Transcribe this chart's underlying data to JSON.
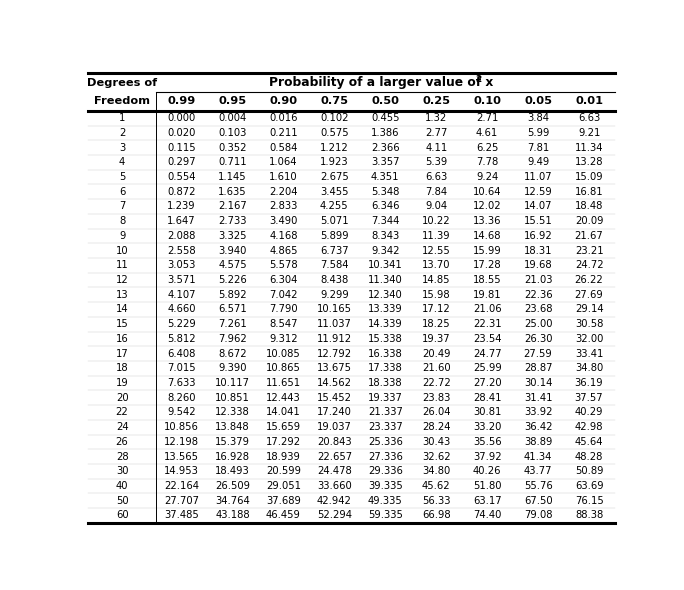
{
  "col_headers": [
    "0.99",
    "0.95",
    "0.90",
    "0.75",
    "0.50",
    "0.25",
    "0.10",
    "0.05",
    "0.01"
  ],
  "row_labels": [
    "1",
    "2",
    "3",
    "4",
    "5",
    "6",
    "7",
    "8",
    "9",
    "10",
    "11",
    "12",
    "13",
    "14",
    "15",
    "16",
    "17",
    "18",
    "19",
    "20",
    "22",
    "24",
    "26",
    "28",
    "30",
    "40",
    "50",
    "60"
  ],
  "table_data": [
    [
      "0.000",
      "0.004",
      "0.016",
      "0.102",
      "0.455",
      "1.32",
      "2.71",
      "3.84",
      "6.63"
    ],
    [
      "0.020",
      "0.103",
      "0.211",
      "0.575",
      "1.386",
      "2.77",
      "4.61",
      "5.99",
      "9.21"
    ],
    [
      "0.115",
      "0.352",
      "0.584",
      "1.212",
      "2.366",
      "4.11",
      "6.25",
      "7.81",
      "11.34"
    ],
    [
      "0.297",
      "0.711",
      "1.064",
      "1.923",
      "3.357",
      "5.39",
      "7.78",
      "9.49",
      "13.28"
    ],
    [
      "0.554",
      "1.145",
      "1.610",
      "2.675",
      "4.351",
      "6.63",
      "9.24",
      "11.07",
      "15.09"
    ],
    [
      "0.872",
      "1.635",
      "2.204",
      "3.455",
      "5.348",
      "7.84",
      "10.64",
      "12.59",
      "16.81"
    ],
    [
      "1.239",
      "2.167",
      "2.833",
      "4.255",
      "6.346",
      "9.04",
      "12.02",
      "14.07",
      "18.48"
    ],
    [
      "1.647",
      "2.733",
      "3.490",
      "5.071",
      "7.344",
      "10.22",
      "13.36",
      "15.51",
      "20.09"
    ],
    [
      "2.088",
      "3.325",
      "4.168",
      "5.899",
      "8.343",
      "11.39",
      "14.68",
      "16.92",
      "21.67"
    ],
    [
      "2.558",
      "3.940",
      "4.865",
      "6.737",
      "9.342",
      "12.55",
      "15.99",
      "18.31",
      "23.21"
    ],
    [
      "3.053",
      "4.575",
      "5.578",
      "7.584",
      "10.341",
      "13.70",
      "17.28",
      "19.68",
      "24.72"
    ],
    [
      "3.571",
      "5.226",
      "6.304",
      "8.438",
      "11.340",
      "14.85",
      "18.55",
      "21.03",
      "26.22"
    ],
    [
      "4.107",
      "5.892",
      "7.042",
      "9.299",
      "12.340",
      "15.98",
      "19.81",
      "22.36",
      "27.69"
    ],
    [
      "4.660",
      "6.571",
      "7.790",
      "10.165",
      "13.339",
      "17.12",
      "21.06",
      "23.68",
      "29.14"
    ],
    [
      "5.229",
      "7.261",
      "8.547",
      "11.037",
      "14.339",
      "18.25",
      "22.31",
      "25.00",
      "30.58"
    ],
    [
      "5.812",
      "7.962",
      "9.312",
      "11.912",
      "15.338",
      "19.37",
      "23.54",
      "26.30",
      "32.00"
    ],
    [
      "6.408",
      "8.672",
      "10.085",
      "12.792",
      "16.338",
      "20.49",
      "24.77",
      "27.59",
      "33.41"
    ],
    [
      "7.015",
      "9.390",
      "10.865",
      "13.675",
      "17.338",
      "21.60",
      "25.99",
      "28.87",
      "34.80"
    ],
    [
      "7.633",
      "10.117",
      "11.651",
      "14.562",
      "18.338",
      "22.72",
      "27.20",
      "30.14",
      "36.19"
    ],
    [
      "8.260",
      "10.851",
      "12.443",
      "15.452",
      "19.337",
      "23.83",
      "28.41",
      "31.41",
      "37.57"
    ],
    [
      "9.542",
      "12.338",
      "14.041",
      "17.240",
      "21.337",
      "26.04",
      "30.81",
      "33.92",
      "40.29"
    ],
    [
      "10.856",
      "13.848",
      "15.659",
      "19.037",
      "23.337",
      "28.24",
      "33.20",
      "36.42",
      "42.98"
    ],
    [
      "12.198",
      "15.379",
      "17.292",
      "20.843",
      "25.336",
      "30.43",
      "35.56",
      "38.89",
      "45.64"
    ],
    [
      "13.565",
      "16.928",
      "18.939",
      "22.657",
      "27.336",
      "32.62",
      "37.92",
      "41.34",
      "48.28"
    ],
    [
      "14.953",
      "18.493",
      "20.599",
      "24.478",
      "29.336",
      "34.80",
      "40.26",
      "43.77",
      "50.89"
    ],
    [
      "22.164",
      "26.509",
      "29.051",
      "33.660",
      "39.335",
      "45.62",
      "51.80",
      "55.76",
      "63.69"
    ],
    [
      "27.707",
      "34.764",
      "37.689",
      "42.942",
      "49.335",
      "56.33",
      "63.17",
      "67.50",
      "76.15"
    ],
    [
      "37.485",
      "43.188",
      "46.459",
      "52.294",
      "59.335",
      "66.98",
      "74.40",
      "79.08",
      "88.38"
    ]
  ],
  "main_header": "Probability of a larger value of x",
  "superscript": "2",
  "left_header_line1": "Degrees of",
  "left_header_line2": "Freedom",
  "bg_color": "#ffffff",
  "text_color": "#000000",
  "font_size_data": 7.2,
  "font_size_header": 8.2,
  "font_size_title": 8.8
}
